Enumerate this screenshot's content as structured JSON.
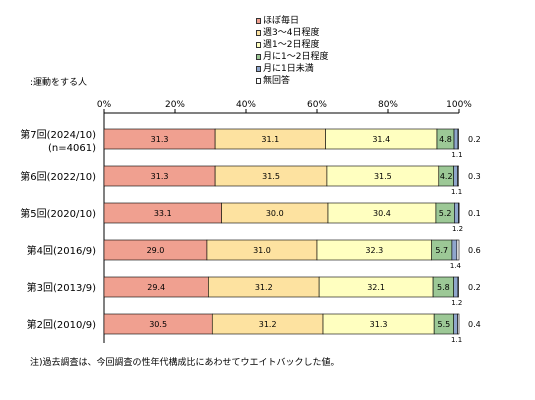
{
  "chart_data": {
    "type": "bar",
    "orientation": "horizontal",
    "stacked": true,
    "subtitle": ":運動をする人",
    "footnote": "注)過去調査は、今回調査の性年代構成比にあわせてウエイトバックした値。",
    "xlim": [
      0,
      100
    ],
    "x_ticks": [
      "0%",
      "20%",
      "40%",
      "60%",
      "80%",
      "100%"
    ],
    "legend_position": "top-center",
    "categories": [
      [
        "第7回(2024/10)",
        "(n=4061)"
      ],
      [
        "第6回(2022/10)"
      ],
      [
        "第5回(2020/10)"
      ],
      [
        "第4回(2016/9)"
      ],
      [
        "第3回(2013/9)"
      ],
      [
        "第2回(2010/9)"
      ]
    ],
    "series": [
      {
        "name": "ほぼ毎日",
        "color": "#F0A090",
        "values": [
          31.3,
          31.3,
          33.1,
          29.0,
          29.4,
          30.5
        ]
      },
      {
        "name": "週3～4日程度",
        "color": "#FDE2A0",
        "values": [
          31.1,
          31.5,
          30.0,
          31.0,
          31.2,
          31.2
        ]
      },
      {
        "name": "週1～2日程度",
        "color": "#FFFFC0",
        "values": [
          31.4,
          31.5,
          30.4,
          32.3,
          32.1,
          31.3
        ]
      },
      {
        "name": "月に1～2日程度",
        "color": "#9CC896",
        "values": [
          4.8,
          4.2,
          5.2,
          5.7,
          5.8,
          5.5
        ]
      },
      {
        "name": "月に1日未満",
        "color": "#8FA6CC",
        "values": [
          1.1,
          1.1,
          1.2,
          1.4,
          1.2,
          1.1
        ]
      },
      {
        "name": "無回答",
        "color": "#FFFFFF",
        "values": [
          0.2,
          0.3,
          0.1,
          0.6,
          0.2,
          0.4
        ]
      }
    ],
    "value_label_display": {
      "inside_series": [
        0,
        1,
        2,
        3
      ],
      "below_series": 4,
      "right_series": 5
    }
  }
}
